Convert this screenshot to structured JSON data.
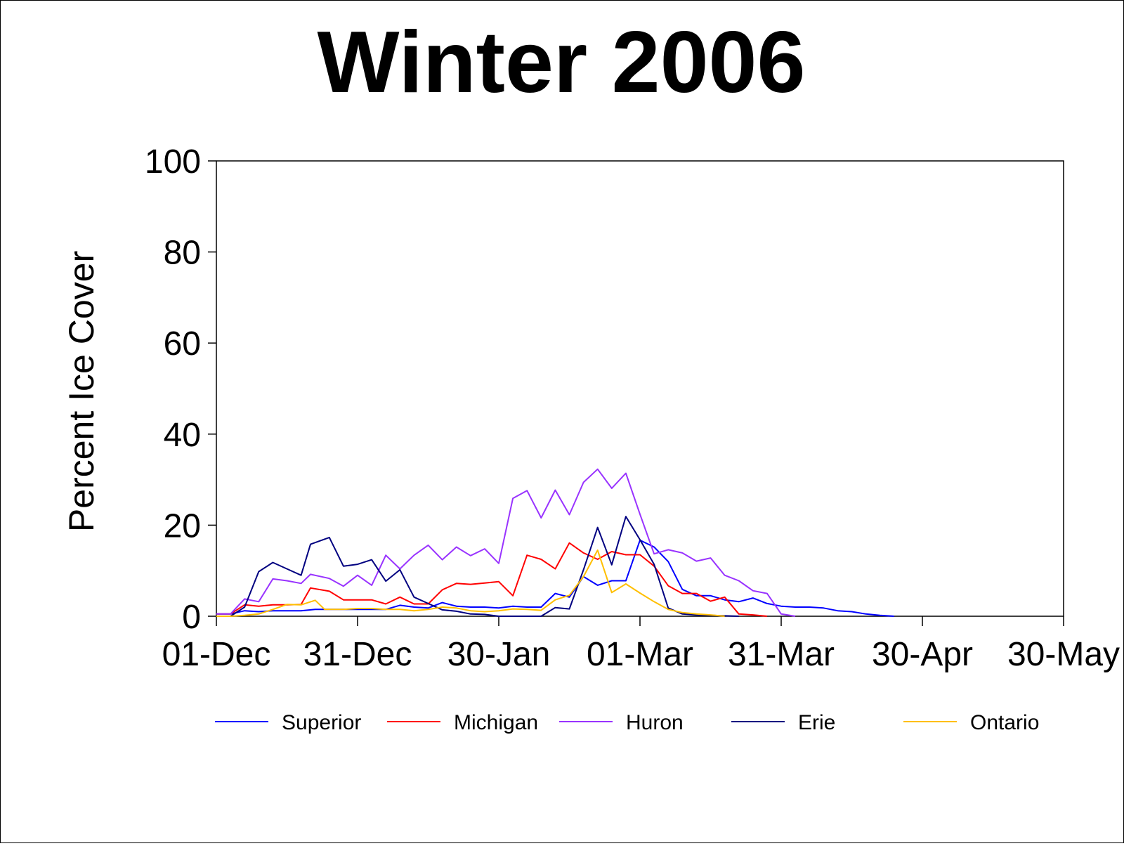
{
  "chart_data": {
    "type": "line",
    "title": "Winter 2006",
    "subtitle": "",
    "xlabel": "",
    "ylabel": "Percent Ice Cover",
    "ylim": [
      0,
      100
    ],
    "yticks": [
      0,
      20,
      40,
      60,
      80,
      100
    ],
    "xlim": [
      0,
      180
    ],
    "xticks": [
      {
        "label": "01-Dec",
        "day": 0
      },
      {
        "label": "31-Dec",
        "day": 30
      },
      {
        "label": "30-Jan",
        "day": 60
      },
      {
        "label": "01-Mar",
        "day": 90
      },
      {
        "label": "31-Mar",
        "day": 120
      },
      {
        "label": "30-Apr",
        "day": 150
      },
      {
        "label": "30-May",
        "day": 180
      }
    ],
    "x_unit": "days from 01-Dec",
    "grid": false,
    "legend_position": "bottom",
    "series": [
      {
        "name": "Superior",
        "color": "#0000ff",
        "points": [
          [
            0,
            0.5
          ],
          [
            3,
            0.5
          ],
          [
            6,
            1.2
          ],
          [
            9,
            1.0
          ],
          [
            12,
            1.2
          ],
          [
            15,
            1.2
          ],
          [
            18,
            1.2
          ],
          [
            21,
            1.5
          ],
          [
            24,
            1.5
          ],
          [
            27,
            1.5
          ],
          [
            30,
            1.5
          ],
          [
            33,
            1.5
          ],
          [
            36,
            1.5
          ],
          [
            39,
            2.4
          ],
          [
            42,
            2.0
          ],
          [
            45,
            1.8
          ],
          [
            48,
            3.0
          ],
          [
            51,
            2.2
          ],
          [
            54,
            2.0
          ],
          [
            57,
            2.0
          ],
          [
            60,
            1.8
          ],
          [
            63,
            2.2
          ],
          [
            66,
            2.0
          ],
          [
            69,
            2.0
          ],
          [
            72,
            5.0
          ],
          [
            75,
            4.2
          ],
          [
            78,
            8.7
          ],
          [
            81,
            6.8
          ],
          [
            84,
            7.8
          ],
          [
            87,
            7.8
          ],
          [
            90,
            16.7
          ],
          [
            93,
            15.2
          ],
          [
            96,
            12.0
          ],
          [
            99,
            5.9
          ],
          [
            102,
            4.5
          ],
          [
            105,
            4.5
          ],
          [
            108,
            3.6
          ],
          [
            111,
            3.2
          ],
          [
            114,
            4.0
          ],
          [
            117,
            2.8
          ],
          [
            120,
            2.2
          ],
          [
            123,
            2.0
          ],
          [
            126,
            2.0
          ],
          [
            129,
            1.8
          ],
          [
            132,
            1.2
          ],
          [
            135,
            1.0
          ],
          [
            138,
            0.5
          ],
          [
            141,
            0.2
          ],
          [
            144,
            0
          ]
        ]
      },
      {
        "name": "Michigan",
        "color": "#ff0000",
        "points": [
          [
            0,
            0.5
          ],
          [
            3,
            0.5
          ],
          [
            6,
            2.5
          ],
          [
            9,
            2.2
          ],
          [
            12,
            2.5
          ],
          [
            15,
            2.5
          ],
          [
            18,
            2.6
          ],
          [
            20,
            6.2
          ],
          [
            24,
            5.5
          ],
          [
            27,
            3.6
          ],
          [
            30,
            3.6
          ],
          [
            33,
            3.6
          ],
          [
            36,
            2.7
          ],
          [
            39,
            4.2
          ],
          [
            42,
            2.7
          ],
          [
            45,
            2.7
          ],
          [
            48,
            5.8
          ],
          [
            51,
            7.2
          ],
          [
            54,
            7.0
          ],
          [
            57,
            7.3
          ],
          [
            60,
            7.6
          ],
          [
            63,
            4.5
          ],
          [
            66,
            13.4
          ],
          [
            69,
            12.5
          ],
          [
            72,
            10.4
          ],
          [
            75,
            16.1
          ],
          [
            78,
            13.9
          ],
          [
            81,
            12.5
          ],
          [
            84,
            14.2
          ],
          [
            87,
            13.5
          ],
          [
            90,
            13.5
          ],
          [
            93,
            11.0
          ],
          [
            96,
            6.7
          ],
          [
            99,
            5.0
          ],
          [
            102,
            5.0
          ],
          [
            105,
            3.3
          ],
          [
            108,
            4.2
          ],
          [
            111,
            0.5
          ],
          [
            114,
            0.3
          ],
          [
            117,
            0
          ]
        ]
      },
      {
        "name": "Huron",
        "color": "#9933ff",
        "points": [
          [
            0,
            0.5
          ],
          [
            3,
            0.5
          ],
          [
            6,
            3.8
          ],
          [
            9,
            3.2
          ],
          [
            12,
            8.2
          ],
          [
            15,
            7.8
          ],
          [
            18,
            7.2
          ],
          [
            20,
            9.2
          ],
          [
            24,
            8.3
          ],
          [
            27,
            6.6
          ],
          [
            30,
            9.0
          ],
          [
            33,
            6.8
          ],
          [
            36,
            13.4
          ],
          [
            39,
            10.4
          ],
          [
            42,
            13.4
          ],
          [
            45,
            15.6
          ],
          [
            48,
            12.4
          ],
          [
            51,
            15.2
          ],
          [
            54,
            13.3
          ],
          [
            57,
            14.8
          ],
          [
            60,
            11.6
          ],
          [
            63,
            25.9
          ],
          [
            66,
            27.6
          ],
          [
            69,
            21.6
          ],
          [
            72,
            27.7
          ],
          [
            75,
            22.3
          ],
          [
            78,
            29.4
          ],
          [
            81,
            32.3
          ],
          [
            84,
            28.1
          ],
          [
            87,
            31.4
          ],
          [
            90,
            22.4
          ],
          [
            93,
            13.7
          ],
          [
            96,
            14.6
          ],
          [
            99,
            13.9
          ],
          [
            102,
            12.1
          ],
          [
            105,
            12.8
          ],
          [
            108,
            9.0
          ],
          [
            111,
            7.8
          ],
          [
            114,
            5.6
          ],
          [
            117,
            5.0
          ],
          [
            120,
            0.5
          ],
          [
            123,
            0
          ]
        ]
      },
      {
        "name": "Erie",
        "color": "#000080",
        "points": [
          [
            0,
            0
          ],
          [
            3,
            0
          ],
          [
            6,
            2.0
          ],
          [
            9,
            9.8
          ],
          [
            12,
            11.8
          ],
          [
            15,
            10.4
          ],
          [
            18,
            9.0
          ],
          [
            20,
            15.8
          ],
          [
            24,
            17.3
          ],
          [
            27,
            11.0
          ],
          [
            30,
            11.4
          ],
          [
            33,
            12.4
          ],
          [
            36,
            7.7
          ],
          [
            39,
            10.2
          ],
          [
            42,
            4.2
          ],
          [
            45,
            2.8
          ],
          [
            48,
            1.4
          ],
          [
            51,
            1.1
          ],
          [
            54,
            0.5
          ],
          [
            57,
            0.4
          ],
          [
            60,
            0
          ],
          [
            63,
            0
          ],
          [
            66,
            0
          ],
          [
            69,
            0
          ],
          [
            72,
            1.9
          ],
          [
            75,
            1.6
          ],
          [
            78,
            10.2
          ],
          [
            81,
            19.5
          ],
          [
            84,
            11.3
          ],
          [
            87,
            21.9
          ],
          [
            90,
            16.8
          ],
          [
            93,
            11.4
          ],
          [
            96,
            1.8
          ],
          [
            99,
            0.5
          ],
          [
            102,
            0.3
          ],
          [
            105,
            0.2
          ],
          [
            108,
            0.1
          ],
          [
            111,
            0
          ]
        ]
      },
      {
        "name": "Ontario",
        "color": "#ffbf00",
        "points": [
          [
            0,
            0
          ],
          [
            3,
            0
          ],
          [
            6,
            0.2
          ],
          [
            9,
            0.5
          ],
          [
            12,
            1.5
          ],
          [
            15,
            2.6
          ],
          [
            18,
            2.5
          ],
          [
            21,
            3.5
          ],
          [
            23,
            1.5
          ],
          [
            27,
            1.5
          ],
          [
            30,
            1.7
          ],
          [
            33,
            1.7
          ],
          [
            36,
            1.5
          ],
          [
            39,
            1.5
          ],
          [
            42,
            1.2
          ],
          [
            45,
            1.5
          ],
          [
            48,
            2.0
          ],
          [
            51,
            1.8
          ],
          [
            54,
            1.2
          ],
          [
            57,
            1.0
          ],
          [
            60,
            1.2
          ],
          [
            63,
            1.6
          ],
          [
            66,
            1.5
          ],
          [
            69,
            1.3
          ],
          [
            72,
            3.6
          ],
          [
            75,
            4.6
          ],
          [
            78,
            8.7
          ],
          [
            81,
            14.5
          ],
          [
            84,
            5.2
          ],
          [
            87,
            7.1
          ],
          [
            90,
            5.1
          ],
          [
            93,
            3.2
          ],
          [
            96,
            1.5
          ],
          [
            99,
            0.8
          ],
          [
            102,
            0.5
          ],
          [
            105,
            0.3
          ],
          [
            108,
            0
          ]
        ]
      }
    ]
  }
}
